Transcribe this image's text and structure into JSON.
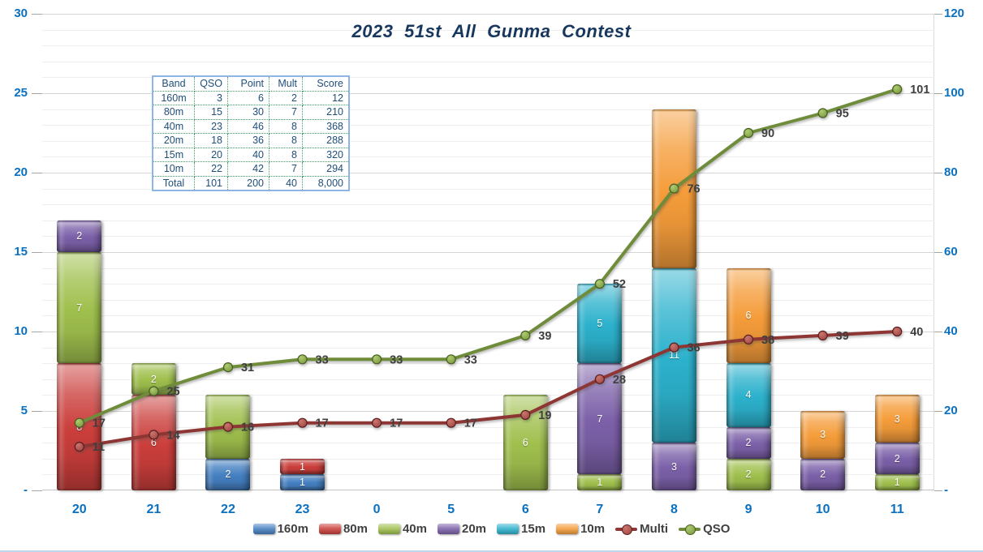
{
  "title": "2023 51st All Gunma Contest",
  "colors": {
    "title": "#17375e",
    "axis_label": "#0a70c0",
    "line_label": "#3f3f3f",
    "table_text": "#1f4e79",
    "gridline_minor": "#efefef",
    "gridline_major": "#d6d6d6"
  },
  "axes": {
    "left_ticks": [
      "30",
      "25",
      "20",
      "15",
      "10",
      "5",
      "-"
    ],
    "right_ticks": [
      "120",
      "100",
      "80",
      "60",
      "40",
      "20",
      "-"
    ],
    "categories": [
      "20",
      "21",
      "22",
      "23",
      "0",
      "5",
      "6",
      "7",
      "8",
      "9",
      "10",
      "11"
    ]
  },
  "table": {
    "headers": [
      "Band",
      "QSO",
      "Point",
      "Mult",
      "Score"
    ],
    "rows": [
      [
        "160m",
        "3",
        "6",
        "2",
        "12"
      ],
      [
        "80m",
        "15",
        "30",
        "7",
        "210"
      ],
      [
        "40m",
        "23",
        "46",
        "8",
        "368"
      ],
      [
        "20m",
        "18",
        "36",
        "8",
        "288"
      ],
      [
        "15m",
        "20",
        "40",
        "8",
        "320"
      ],
      [
        "10m",
        "22",
        "42",
        "7",
        "294"
      ],
      [
        "Total",
        "101",
        "200",
        "40",
        "8,000"
      ]
    ]
  },
  "chart_data": {
    "type": "combo-stacked-bar-line",
    "title": "2023 51st All Gunma Contest",
    "categories": [
      "20",
      "21",
      "22",
      "23",
      "0",
      "5",
      "6",
      "7",
      "8",
      "9",
      "10",
      "11"
    ],
    "bar_axis": {
      "min": 0,
      "max": 30,
      "major_step": 5,
      "minor_step": 1
    },
    "line_axis": {
      "min": 0,
      "max": 120,
      "major_step": 20
    },
    "grid": true,
    "legend_position": "bottom",
    "bar_series": [
      {
        "name": "160m",
        "color": "#4580c2",
        "values": [
          0,
          0,
          2,
          1,
          0,
          0,
          0,
          0,
          0,
          0,
          0,
          0
        ]
      },
      {
        "name": "80m",
        "color": "#cb3f3c",
        "values": [
          8,
          6,
          0,
          1,
          0,
          0,
          0,
          0,
          0,
          0,
          0,
          0
        ]
      },
      {
        "name": "40m",
        "color": "#a0c04e",
        "values": [
          7,
          2,
          4,
          0,
          0,
          0,
          6,
          1,
          0,
          2,
          0,
          1
        ]
      },
      {
        "name": "20m",
        "color": "#7c61a9",
        "values": [
          2,
          0,
          0,
          0,
          0,
          0,
          0,
          7,
          3,
          2,
          2,
          2
        ]
      },
      {
        "name": "15m",
        "color": "#2db2cd",
        "values": [
          0,
          0,
          0,
          0,
          0,
          0,
          0,
          5,
          11,
          4,
          0,
          0
        ]
      },
      {
        "name": "10m",
        "color": "#f59d3b",
        "values": [
          0,
          0,
          0,
          0,
          0,
          0,
          0,
          0,
          10,
          6,
          3,
          3
        ]
      }
    ],
    "line_series": [
      {
        "name": "Multi",
        "color": "#8e3634",
        "marker_fill": "#a04340",
        "marker_light": "#c9766e",
        "marker_stroke": "#5a1f1e",
        "values": [
          11,
          14,
          16,
          17,
          17,
          17,
          19,
          28,
          36,
          38,
          39,
          40
        ]
      },
      {
        "name": "QSO",
        "color": "#6e8c3a",
        "marker_fill": "#76973c",
        "marker_light": "#afcb72",
        "marker_stroke": "#465f1f",
        "values": [
          17,
          25,
          31,
          33,
          33,
          33,
          39,
          52,
          76,
          90,
          95,
          101
        ]
      }
    ]
  }
}
